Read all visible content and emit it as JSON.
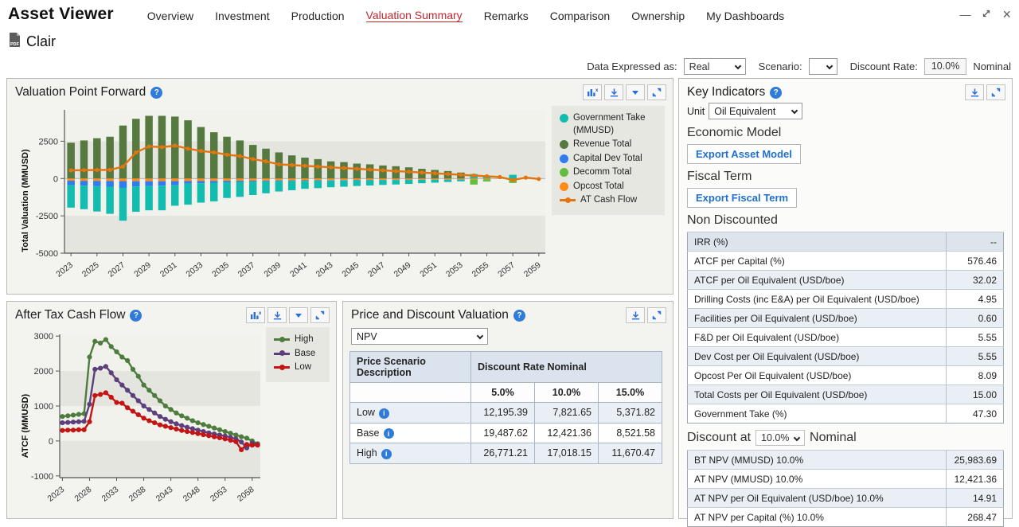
{
  "window": {
    "app_title": "Asset Viewer",
    "minimize": "—",
    "restore": "restore",
    "close": "×"
  },
  "nav": {
    "tabs": [
      {
        "label": "Overview",
        "active": false
      },
      {
        "label": "Investment",
        "active": false
      },
      {
        "label": "Production",
        "active": false
      },
      {
        "label": "Valuation Summary",
        "active": true
      },
      {
        "label": "Remarks",
        "active": false
      },
      {
        "label": "Comparison",
        "active": false
      },
      {
        "label": "Ownership",
        "active": false
      },
      {
        "label": "My Dashboards",
        "active": false
      }
    ]
  },
  "asset": {
    "name": "Clair",
    "icon": "pdf-file-icon"
  },
  "toolbar": {
    "data_expressed_label": "Data Expressed as:",
    "data_expressed_value": "Real",
    "scenario_label": "Scenario:",
    "scenario_value": "",
    "discount_rate_label": "Discount Rate:",
    "discount_rate_value": "10.0%",
    "basis_label": "Nominal"
  },
  "panels": {
    "valuation_point_forward": {
      "title": "Valuation Point Forward"
    },
    "after_tax_cash_flow": {
      "title": "After Tax Cash Flow"
    },
    "price_discount": {
      "title": "Price and Discount Valuation",
      "selector_value": "NPV",
      "table": {
        "row_header": "Price Scenario Description",
        "col_group_label": "Discount Rate Nominal",
        "columns": [
          "5.0%",
          "10.0%",
          "15.0%"
        ],
        "rows": [
          {
            "label": "Low",
            "shaded": true,
            "values": [
              "12,195.39",
              "7,821.65",
              "5,371.82"
            ]
          },
          {
            "label": "Base",
            "shaded": false,
            "values": [
              "19,487.62",
              "12,421.36",
              "8,521.58"
            ]
          },
          {
            "label": "High",
            "shaded": true,
            "values": [
              "26,771.21",
              "17,018.15",
              "11,670.47"
            ]
          }
        ]
      }
    },
    "key_indicators": {
      "title": "Key Indicators",
      "unit_label": "Unit",
      "unit_value": "Oil Equivalent",
      "economic_model_heading": "Economic Model",
      "export_asset_model_label": "Export Asset Model",
      "fiscal_term_heading": "Fiscal Term",
      "export_fiscal_term_label": "Export Fiscal Term",
      "non_discounted_heading": "Non Discounted",
      "non_discounted_rows": [
        {
          "label": "IRR (%)",
          "value": "--"
        },
        {
          "label": "ATCF per Capital (%)",
          "value": "576.46"
        },
        {
          "label": "ATCF per Oil Equivalent (USD/boe)",
          "value": "32.02"
        },
        {
          "label": "Drilling Costs (inc E&A) per Oil Equivalent (USD/boe)",
          "value": "4.95"
        },
        {
          "label": "Facilities per Oil Equivalent (USD/boe)",
          "value": "0.60"
        },
        {
          "label": "F&D per Oil Equivalent (USD/boe)",
          "value": "5.55"
        },
        {
          "label": "Dev Cost per Oil Equivalent (USD/boe)",
          "value": "5.55"
        },
        {
          "label": "Opcost Per Oil Equivalent (USD/boe)",
          "value": "8.09"
        },
        {
          "label": "Total Costs per Oil Equivalent (USD/boe)",
          "value": "15.00"
        },
        {
          "label": "Government Take (%)",
          "value": "47.30"
        }
      ],
      "discount_heading_prefix": "Discount at",
      "discount_select_value": "10.0%",
      "discount_heading_suffix": "Nominal",
      "discounted_rows": [
        {
          "label": "BT NPV (MMUSD) 10.0%",
          "value": "25,983.69"
        },
        {
          "label": "AT NPV (MMUSD) 10.0%",
          "value": "12,421.36"
        },
        {
          "label": "AT NPV per Oil Equivalent (USD/boe) 10.0%",
          "value": "14.91"
        },
        {
          "label": "AT NPV per Capital (%) 10.0%",
          "value": "268.47"
        }
      ]
    }
  },
  "chart_data": [
    {
      "id": "vpf",
      "type": "bar",
      "title": "Valuation Point Forward",
      "ylabel": "Total Valuation (MMUSD)",
      "ylim": [
        -5000,
        4600
      ],
      "yticks": [
        2500,
        0,
        -2500,
        -5000
      ],
      "years_start": 2023,
      "years_end": 2059,
      "xtick_step": 2,
      "legend_position": "right",
      "bands": [
        [
          4600,
          2500,
          "light"
        ],
        [
          2500,
          0,
          "dark"
        ],
        [
          0,
          -2500,
          "light"
        ],
        [
          -2500,
          -5000,
          "dark"
        ]
      ],
      "band_colors": {
        "light": "#f2f2ec",
        "dark": "#e5e5df"
      },
      "pos_stack": [
        "revenue_total",
        "government_take"
      ],
      "neg_stack": [
        "opcost_total",
        "capital_dev_total",
        "government_take",
        "decomm_total"
      ],
      "series": [
        {
          "key": "government_take",
          "name": "Government Take (MMUSD)",
          "color": "#12bdb0",
          "kind": "bar",
          "values": [
            -1500,
            -1580,
            -1700,
            -1820,
            -2200,
            -1700,
            -1630,
            -1650,
            -1370,
            -1400,
            -1300,
            -1250,
            -1050,
            -1000,
            -900,
            -800,
            -700,
            -620,
            -540,
            -500,
            -450,
            -420,
            -380,
            -350,
            -320,
            -300,
            -270,
            -230,
            -200,
            -160,
            -120,
            300,
            200,
            0,
            250,
            0,
            0
          ]
        },
        {
          "key": "revenue_total",
          "name": "Revenue Total",
          "color": "#55793f",
          "kind": "bar",
          "values": [
            2400,
            2550,
            2700,
            2800,
            3550,
            4000,
            4200,
            4200,
            4150,
            3900,
            3450,
            3100,
            2800,
            2550,
            2250,
            2000,
            1750,
            1550,
            1400,
            1300,
            1150,
            1100,
            1000,
            950,
            875,
            825,
            750,
            650,
            575,
            500,
            400,
            0,
            0,
            0,
            0,
            0,
            0
          ]
        },
        {
          "key": "capital_dev_total",
          "name": "Capital Dev Total",
          "color": "#2e7cf0",
          "kind": "bar",
          "values": [
            -300,
            -320,
            -350,
            -380,
            -450,
            -350,
            -320,
            -300,
            -280,
            -180,
            -150,
            -120,
            -100,
            -80,
            -60,
            -50,
            -40,
            -40,
            -30,
            -30,
            -25,
            -25,
            -20,
            -20,
            -20,
            -15,
            -15,
            -10,
            -10,
            -10,
            -10,
            0,
            0,
            0,
            0,
            0,
            0
          ]
        },
        {
          "key": "decomm_total",
          "name": "Decomm Total",
          "color": "#64bd3e",
          "kind": "bar",
          "values": [
            0,
            0,
            0,
            0,
            0,
            0,
            0,
            0,
            0,
            0,
            0,
            0,
            0,
            0,
            0,
            0,
            0,
            0,
            0,
            0,
            0,
            0,
            0,
            0,
            0,
            0,
            0,
            0,
            0,
            0,
            0,
            -350,
            -150,
            0,
            -300,
            0,
            0
          ]
        },
        {
          "key": "opcost_total",
          "name": "Opcost Total",
          "color": "#ff8c1a",
          "kind": "bar",
          "values": [
            -150,
            -155,
            -160,
            -165,
            -175,
            -180,
            -180,
            -180,
            -175,
            -170,
            -165,
            -160,
            -155,
            -150,
            -145,
            -140,
            -130,
            -125,
            -120,
            -115,
            -110,
            -105,
            -100,
            -95,
            -90,
            -85,
            -80,
            -75,
            -70,
            -65,
            -60,
            -55,
            -50,
            0,
            0,
            0,
            0
          ]
        },
        {
          "key": "at_cash_flow",
          "name": "AT Cash Flow",
          "color": "#e2750e",
          "kind": "line",
          "values": [
            550,
            560,
            570,
            580,
            800,
            1750,
            2150,
            2100,
            2200,
            2000,
            1850,
            1750,
            1600,
            1500,
            1300,
            1150,
            950,
            900,
            850,
            800,
            750,
            700,
            650,
            600,
            550,
            500,
            450,
            400,
            350,
            300,
            250,
            200,
            150,
            100,
            -100,
            60,
            -30
          ]
        }
      ]
    },
    {
      "id": "atcf",
      "type": "line",
      "title": "After Tax Cash Flow",
      "ylabel": "ATCF (MMUSD)",
      "ylim": [
        -1050,
        3050
      ],
      "yticks": [
        3000,
        2000,
        1000,
        0,
        -1000
      ],
      "years_start": 2023,
      "years_end": 2059,
      "xtick_step": 5,
      "legend_position": "right",
      "bands": [
        [
          3050,
          2000,
          "light"
        ],
        [
          2000,
          1000,
          "dark"
        ],
        [
          1000,
          0,
          "light"
        ],
        [
          0,
          -1050,
          "dark"
        ]
      ],
      "band_colors": {
        "light": "#f2f2ec",
        "dark": "#e5e5df"
      },
      "series": [
        {
          "key": "high",
          "name": "High",
          "color": "#4e7c3e",
          "kind": "line",
          "values": [
            700,
            720,
            740,
            760,
            780,
            2400,
            2850,
            2800,
            2900,
            2700,
            2550,
            2400,
            2300,
            2050,
            1850,
            1600,
            1450,
            1300,
            1150,
            1000,
            900,
            800,
            720,
            650,
            580,
            520,
            470,
            420,
            370,
            320,
            270,
            220,
            170,
            120,
            80,
            0,
            -80
          ]
        },
        {
          "key": "base",
          "name": "Base",
          "color": "#5d3f7c",
          "kind": "line",
          "values": [
            520,
            530,
            540,
            550,
            560,
            1050,
            2050,
            2080,
            2130,
            1950,
            1750,
            1600,
            1450,
            1300,
            1150,
            1000,
            900,
            800,
            700,
            620,
            550,
            490,
            440,
            390,
            350,
            310,
            270,
            230,
            200,
            170,
            140,
            100,
            60,
            -30,
            -200,
            -60,
            -100
          ]
        },
        {
          "key": "low",
          "name": "Low",
          "color": "#c41414",
          "kind": "line",
          "values": [
            300,
            310,
            310,
            320,
            320,
            550,
            1300,
            1330,
            1380,
            1250,
            1100,
            1080,
            950,
            850,
            750,
            650,
            580,
            520,
            460,
            420,
            380,
            340,
            300,
            270,
            240,
            210,
            180,
            150,
            120,
            90,
            60,
            20,
            -20,
            -250,
            -100,
            -120,
            -120
          ]
        }
      ]
    }
  ],
  "icons": {
    "chart_toggle": "chart-toggle-icon",
    "download": "download-icon",
    "dropdown": "dropdown-icon",
    "expand": "expand-icon",
    "help": "?",
    "info": "i"
  }
}
